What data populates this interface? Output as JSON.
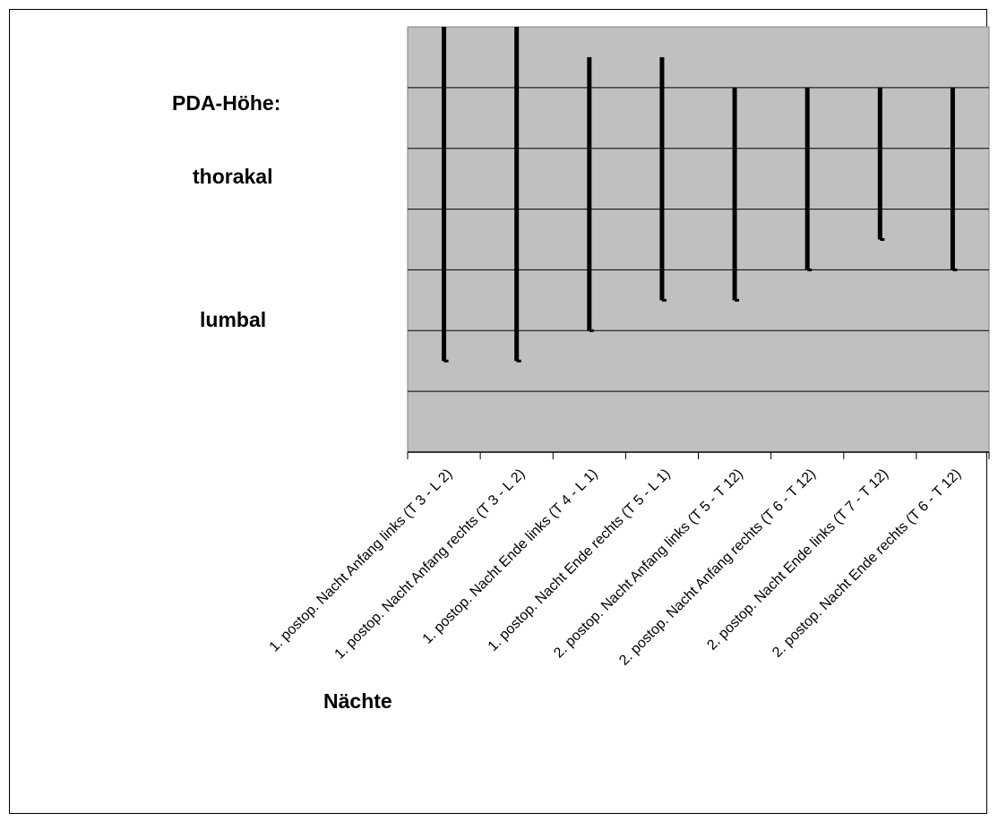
{
  "chart_data": {
    "type": "bar",
    "subtype": "range",
    "title": "PDA-Höhe:",
    "annotations": [
      "thorakal",
      "lumbal"
    ],
    "xlabel": "Nächte",
    "ylabel": "",
    "grid": true,
    "plot_background": "#c0c0c0",
    "bar_color": "#000000",
    "ylim": [
      0,
      14
    ],
    "categories": [
      "1. postop. Nacht Anfang links (T 3 - L 2)",
      "1. postop. Nacht Anfang rechts (T 3 - L 2)",
      "1. postop. Nacht Ende links (T 4 - L 1)",
      "1. postop. Nacht Ende rechts (T 5 - L 1)",
      "2. postop. Nacht Anfang links (T 5 - T 12)",
      "2. postop. Nacht Anfang rechts (T 6 - T 12)",
      "2. postop. Nacht Ende links (T 7 - T 12)",
      "2. postop. Nacht Ende rechts (T 6 - T 12)"
    ],
    "ranges": [
      {
        "top": 3,
        "bottom": 14
      },
      {
        "top": 3,
        "bottom": 14
      },
      {
        "top": 4,
        "bottom": 13
      },
      {
        "top": 5,
        "bottom": 13
      },
      {
        "top": 5,
        "bottom": 12
      },
      {
        "top": 6,
        "bottom": 12
      },
      {
        "top": 7,
        "bottom": 12
      },
      {
        "top": 6,
        "bottom": 12
      }
    ]
  }
}
